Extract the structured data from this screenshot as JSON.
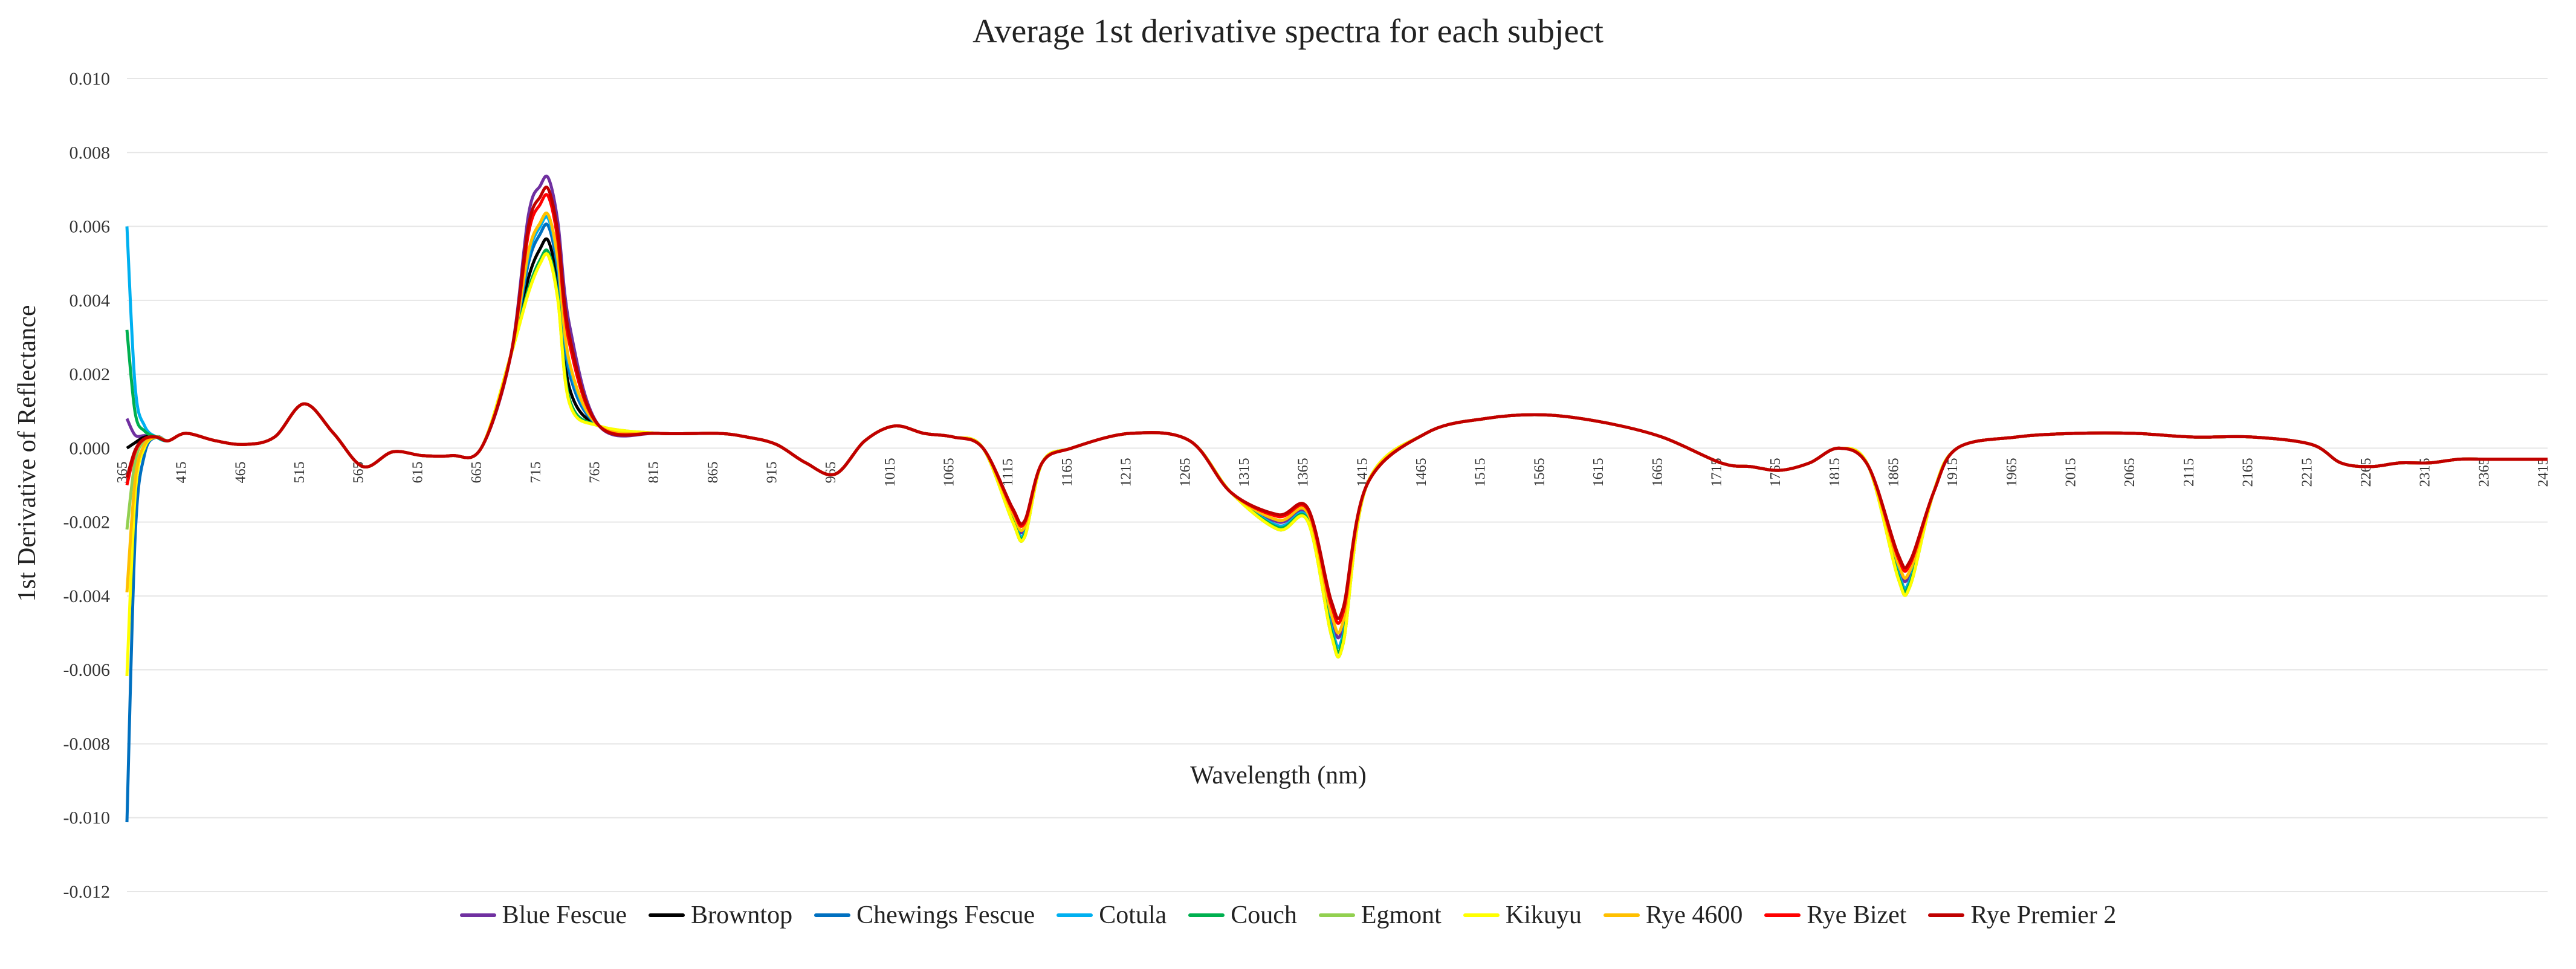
{
  "chart_data": {
    "type": "line",
    "title": "Average 1st derivative spectra for each subject",
    "xlabel": "Wavelength (nm)",
    "ylabel": "1st Derivative of Reflectance",
    "ylim": [
      -0.012,
      0.01
    ],
    "xlim": [
      365,
      2415
    ],
    "grid": true,
    "legend_position": "bottom",
    "y_ticks": [
      "0.010",
      "0.008",
      "0.006",
      "0.004",
      "0.002",
      "0.000",
      "-0.002",
      "-0.004",
      "-0.006",
      "-0.008",
      "-0.010",
      "-0.012"
    ],
    "x_ticks": [
      365,
      415,
      465,
      515,
      565,
      615,
      665,
      715,
      765,
      815,
      865,
      915,
      965,
      1015,
      1065,
      1115,
      1165,
      1215,
      1265,
      1315,
      1365,
      1415,
      1465,
      1515,
      1565,
      1615,
      1665,
      1715,
      1765,
      1815,
      1865,
      1915,
      1965,
      2015,
      2065,
      2115,
      2165,
      2215,
      2265,
      2315,
      2365,
      2415
    ],
    "x": [
      365,
      372,
      380,
      390,
      400,
      415,
      440,
      465,
      490,
      515,
      540,
      565,
      590,
      615,
      640,
      665,
      690,
      705,
      715,
      722,
      730,
      740,
      765,
      815,
      865,
      890,
      915,
      940,
      965,
      990,
      1015,
      1040,
      1065,
      1090,
      1115,
      1125,
      1140,
      1165,
      1215,
      1265,
      1300,
      1340,
      1365,
      1385,
      1395,
      1415,
      1465,
      1515,
      1565,
      1615,
      1665,
      1715,
      1740,
      1765,
      1790,
      1815,
      1840,
      1865,
      1875,
      1895,
      1915,
      1965,
      2015,
      2065,
      2115,
      2165,
      2215,
      2240,
      2265,
      2290,
      2315,
      2340,
      2365,
      2390,
      2415
    ],
    "base_curve": [
      0.0,
      0.0002,
      0.0003,
      0.0003,
      0.0002,
      0.0004,
      0.0002,
      0.0001,
      0.0003,
      0.0012,
      0.0004,
      -0.0005,
      -0.0001,
      -0.0002,
      -0.0002,
      0.0,
      0.0025,
      0.005,
      0.0058,
      0.006,
      0.0048,
      0.002,
      0.0006,
      0.0004,
      0.0004,
      0.0003,
      0.0001,
      -0.0004,
      -0.0007,
      0.0002,
      0.0006,
      0.0004,
      0.0003,
      0.0,
      -0.0018,
      -0.0022,
      -0.0004,
      0.0,
      0.0004,
      0.0002,
      -0.0012,
      -0.002,
      -0.0018,
      -0.0046,
      -0.0048,
      -0.001,
      0.0004,
      0.0008,
      0.0009,
      0.0007,
      0.0003,
      -0.0004,
      -0.0005,
      -0.0006,
      -0.0004,
      0.0,
      -0.0005,
      -0.0032,
      -0.0034,
      -0.0012,
      0.0,
      0.0003,
      0.0004,
      0.0004,
      0.0003,
      0.0003,
      0.0001,
      -0.0004,
      -0.0005,
      -0.0004,
      -0.0004,
      -0.0003,
      -0.0003,
      -0.0003,
      -0.0003
    ],
    "series": [
      {
        "name": "Blue Fescue",
        "color": "#7030A0",
        "start": 0.0008,
        "peak_delta": 0.0013,
        "dip_delta": 0.0,
        "width": 5
      },
      {
        "name": "Browntop",
        "color": "#000000",
        "start": 0.0,
        "peak_delta": -0.0004,
        "dip_delta": -0.0002,
        "width": 5
      },
      {
        "name": "Chewings Fescue",
        "color": "#0070C0",
        "start": -0.0092,
        "peak_delta": 0.0,
        "dip_delta": -0.0004,
        "width": 5
      },
      {
        "name": "Cotula",
        "color": "#00B0F0",
        "start": 0.006,
        "peak_delta": 0.0002,
        "dip_delta": -0.0002,
        "width": 5
      },
      {
        "name": "Couch",
        "color": "#00B050",
        "start": 0.0032,
        "peak_delta": -0.0007,
        "dip_delta": -0.0003,
        "width": 5
      },
      {
        "name": "Egmont",
        "color": "#92D050",
        "start": -0.002,
        "peak_delta": -0.0008,
        "dip_delta": -0.0004,
        "width": 5
      },
      {
        "name": "Kikuyu",
        "color": "#FFFF00",
        "start": -0.0056,
        "peak_delta": -0.0008,
        "dip_delta": -0.0004,
        "width": 5
      },
      {
        "name": "Rye 4600",
        "color": "#FFC000",
        "start": -0.004,
        "peak_delta": 0.0003,
        "dip_delta": 0.0001,
        "width": 5
      },
      {
        "name": "Rye Bizet",
        "color": "#FF0000",
        "start": -0.001,
        "peak_delta": 0.0008,
        "dip_delta": 0.0003,
        "width": 5
      },
      {
        "name": "Rye Premier 2",
        "color": "#C00000",
        "start": -0.0008,
        "peak_delta": 0.001,
        "dip_delta": 0.0004,
        "width": 5
      }
    ]
  }
}
